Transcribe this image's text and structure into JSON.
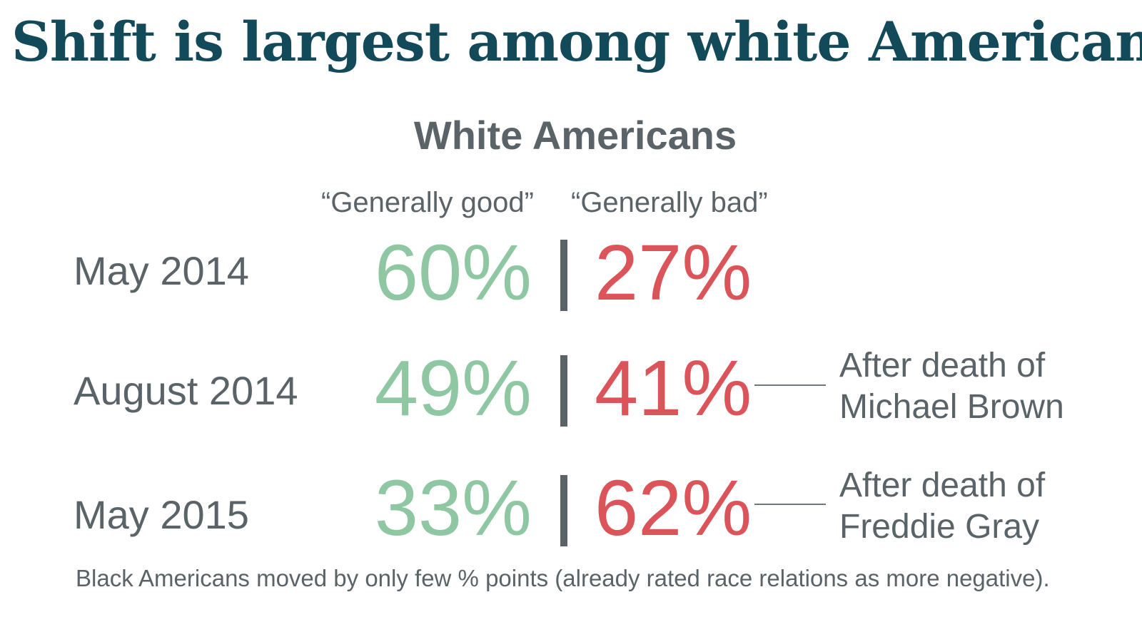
{
  "title": "Shift is largest among white Americans",
  "chart_data": {
    "type": "table",
    "title": "White Americans",
    "columns": [
      "“Generally good”",
      "“Generally bad”"
    ],
    "rows": [
      {
        "period": "May 2014",
        "good": "60%",
        "bad": "27%",
        "note": []
      },
      {
        "period": "August 2014",
        "good": "49%",
        "bad": "41%",
        "note": [
          "After death of",
          "Michael Brown"
        ]
      },
      {
        "period": "May 2015",
        "good": "33%",
        "bad": "62%",
        "note": [
          "After death of",
          "Freddie Gray"
        ]
      }
    ],
    "values": {
      "good": [
        60,
        49,
        33
      ],
      "bad": [
        27,
        41,
        62
      ]
    },
    "colors": {
      "good": "#8fc7a3",
      "bad": "#db545a",
      "title": "#134a59",
      "text": "#5a6468"
    }
  },
  "footnote": "Black Americans moved by only few % points (already rated race relations as more negative)."
}
